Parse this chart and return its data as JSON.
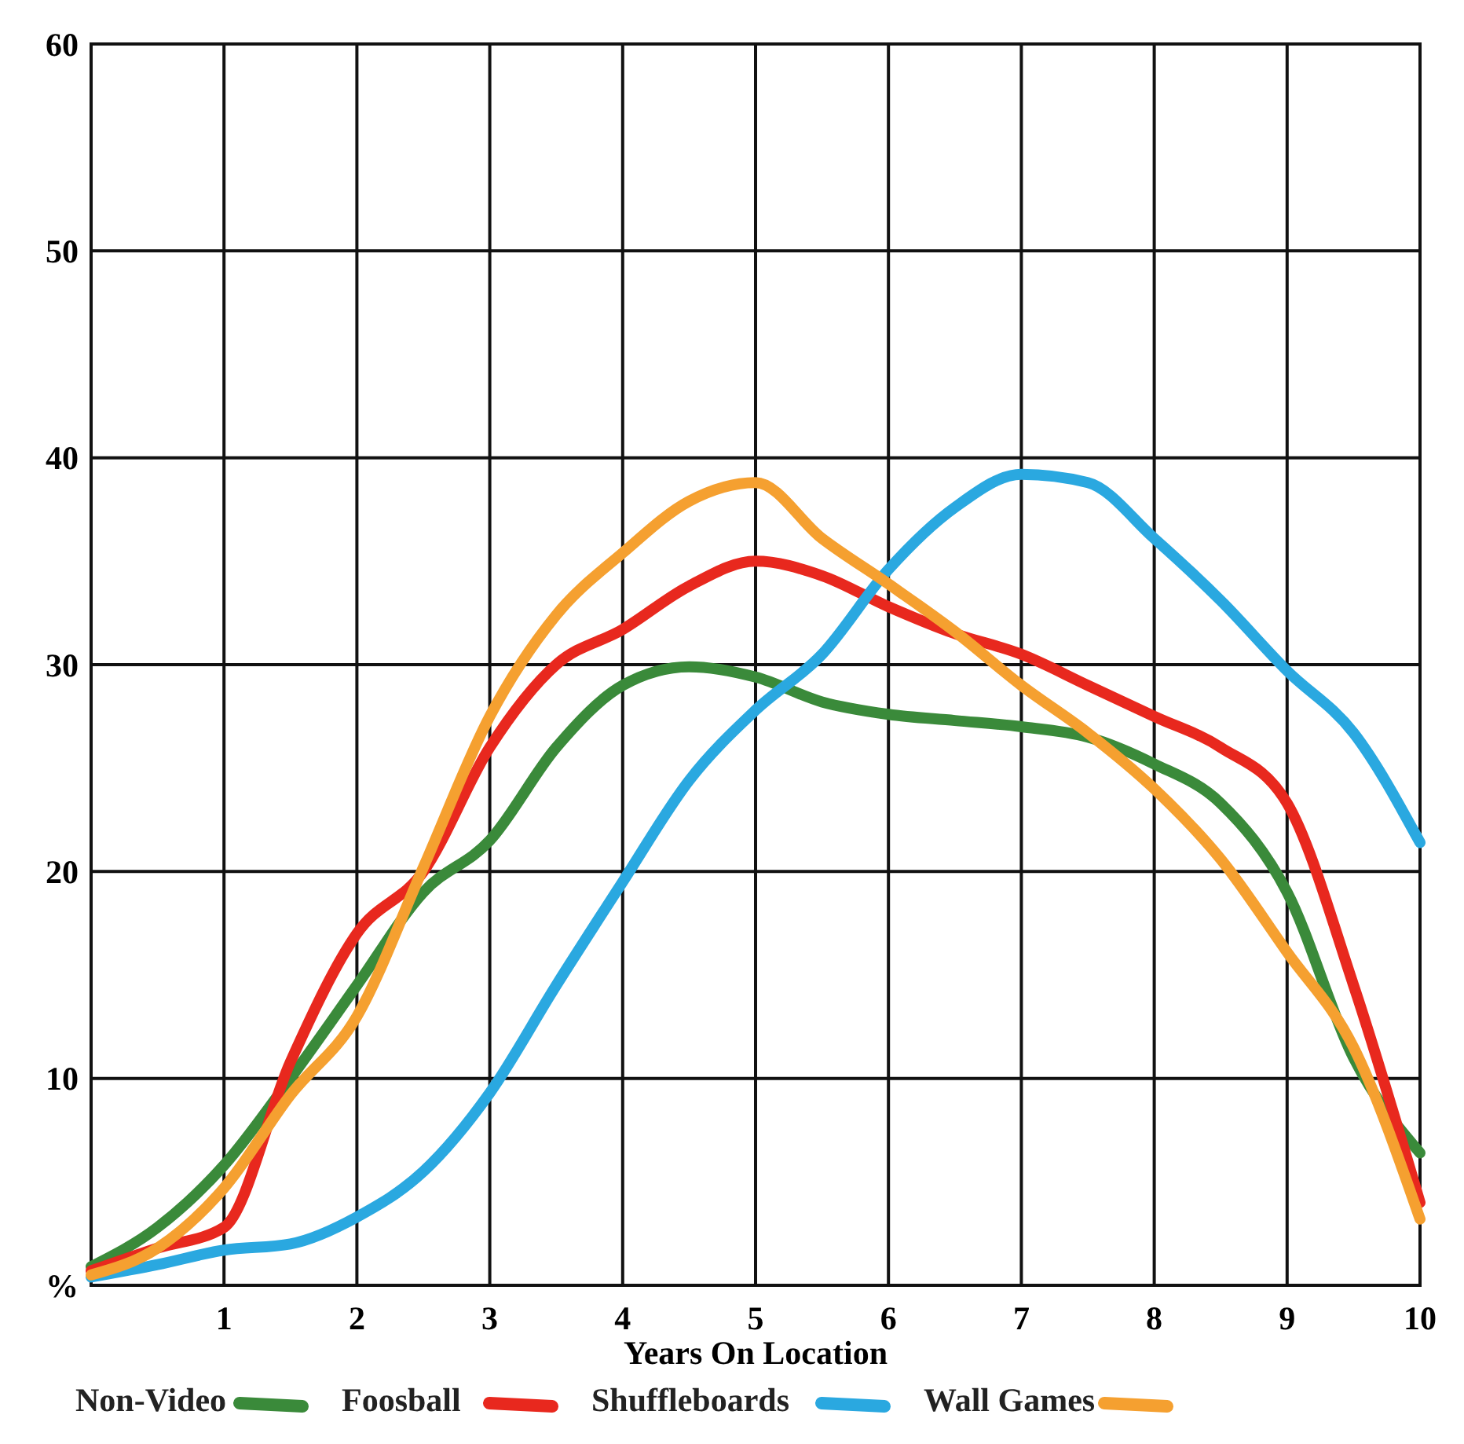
{
  "chart_data": {
    "type": "line",
    "xlabel": "Years On Location",
    "x": [
      0,
      0.5,
      1,
      1.5,
      2,
      2.5,
      3,
      3.5,
      4,
      4.5,
      5,
      5.5,
      6,
      6.5,
      7,
      7.5,
      8,
      8.5,
      9,
      9.5,
      10
    ],
    "series": [
      {
        "name": "Non-Video",
        "color": "#3a8a3a",
        "values": [
          0.9,
          2.8,
          5.8,
          10,
          14.5,
          19,
          21.5,
          26,
          29,
          29.9,
          29.4,
          28.2,
          27.6,
          27.3,
          27,
          26.5,
          25.2,
          23.3,
          19,
          11,
          6.4
        ]
      },
      {
        "name": "Foosball",
        "color": "#e8281e",
        "values": [
          0.7,
          1.8,
          2.8,
          10.8,
          17,
          20,
          26,
          30,
          31.7,
          33.8,
          35,
          34.3,
          32.8,
          31.5,
          30.5,
          29,
          27.5,
          26,
          23.3,
          14.5,
          4
        ]
      },
      {
        "name": "Shuffleboards",
        "color": "#2aa8e0",
        "values": [
          0.4,
          1,
          1.7,
          2,
          3.3,
          5.5,
          9.3,
          14.5,
          19.5,
          24.4,
          27.8,
          30.5,
          34.6,
          37.6,
          39.2,
          38.8,
          36.1,
          33.1,
          29.7,
          26.7,
          21.4
        ]
      },
      {
        "name": "Wall Games",
        "color": "#f5a030",
        "values": [
          0.5,
          1.8,
          4.7,
          9.2,
          13,
          20.2,
          27.5,
          32.4,
          35.4,
          37.9,
          38.8,
          36.1,
          33.9,
          31.6,
          29,
          26.7,
          24,
          20.6,
          16.1,
          11.5,
          3.2
        ]
      }
    ],
    "xlim": [
      0,
      10
    ],
    "xticks": [
      1,
      2,
      3,
      4,
      5,
      6,
      7,
      8,
      9,
      10
    ],
    "ylim": [
      0,
      60
    ],
    "yticks": [
      {
        "value": 0,
        "label": "%"
      },
      10,
      20,
      30,
      40,
      50,
      60
    ],
    "grid": true,
    "legend": "bottom",
    "line_style": "solid",
    "marker": "none"
  }
}
